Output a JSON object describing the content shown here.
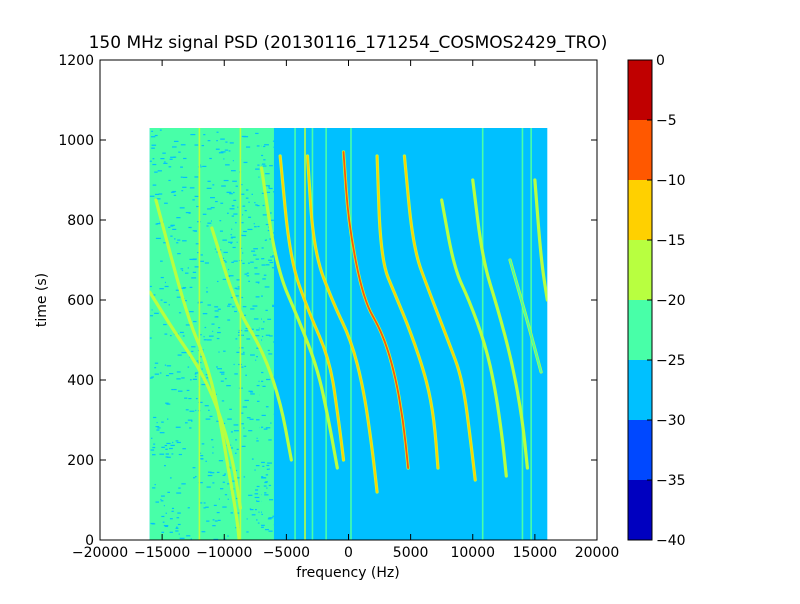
{
  "chart_data": {
    "type": "heatmap",
    "title": "150 MHz signal PSD (20130116_171254_COSMOS2429_TRO)",
    "xlabel": "frequency (Hz)",
    "ylabel": "time (s)",
    "xlim": [
      -20000,
      20000
    ],
    "ylim": [
      0,
      1200
    ],
    "xticks": [
      -20000,
      -15000,
      -10000,
      -5000,
      0,
      5000,
      10000,
      15000,
      20000
    ],
    "xtick_labels": [
      "−20000",
      "−15000",
      "−10000",
      "−5000",
      "0",
      "5000",
      "10000",
      "15000",
      "20000"
    ],
    "yticks": [
      0,
      200,
      400,
      600,
      800,
      1000,
      1200
    ],
    "ytick_labels": [
      "0",
      "200",
      "400",
      "600",
      "800",
      "1000",
      "1200"
    ],
    "data_extent": {
      "x": [
        -16000,
        16000
      ],
      "y": [
        0,
        1030
      ]
    },
    "background_level": -27.5,
    "noise_band": {
      "x": [
        -16000,
        -6000
      ],
      "level": -22.5
    },
    "colorbar": {
      "levels": [
        -40,
        -35,
        -30,
        -25,
        -20,
        -15,
        -10,
        -5,
        0
      ],
      "tick_labels": [
        "−40",
        "−35",
        "−30",
        "−25",
        "−20",
        "−15",
        "−10",
        "−5",
        "0"
      ],
      "colors": [
        "#0000c0",
        "#0048ff",
        "#00c0ff",
        "#48ffa8",
        "#b8ff40",
        "#ffd000",
        "#ff5800",
        "#c00000"
      ]
    },
    "vertical_lines": [
      {
        "x": -12000,
        "level": -17.5
      },
      {
        "x": -8700,
        "level": -17.5
      },
      {
        "x": -7100,
        "level": -22.5
      },
      {
        "x": -4300,
        "level": -22.5
      },
      {
        "x": -3500,
        "level": -17.5
      },
      {
        "x": -2900,
        "level": -22.5
      },
      {
        "x": -1800,
        "level": -22.5
      },
      {
        "x": 200,
        "level": -22.5
      },
      {
        "x": 10800,
        "level": -22.5
      },
      {
        "x": 14000,
        "level": -22.5
      },
      {
        "x": 14700,
        "level": -22.5
      }
    ],
    "tracks": [
      {
        "points": [
          [
            -15500,
            850
          ],
          [
            -13000,
            560
          ],
          [
            -11500,
            450
          ],
          [
            -10500,
            330
          ],
          [
            -9800,
            200
          ],
          [
            -9000,
            60
          ],
          [
            -8800,
            0
          ]
        ],
        "level": -17.5
      },
      {
        "points": [
          [
            -16000,
            620
          ],
          [
            -14000,
            520
          ],
          [
            -12000,
            430
          ],
          [
            -10500,
            330
          ],
          [
            -9300,
            200
          ],
          [
            -8700,
            80
          ]
        ],
        "level": -17.5
      },
      {
        "points": [
          [
            -11000,
            780
          ],
          [
            -9000,
            580
          ],
          [
            -7000,
            480
          ],
          [
            -5500,
            350
          ],
          [
            -4600,
            200
          ]
        ],
        "level": -17.5
      },
      {
        "points": [
          [
            -7000,
            930
          ],
          [
            -5800,
            680
          ],
          [
            -4000,
            550
          ],
          [
            -2500,
            430
          ],
          [
            -1600,
            300
          ],
          [
            -900,
            180
          ]
        ],
        "level": -17.5
      },
      {
        "points": [
          [
            -5500,
            960
          ],
          [
            -4700,
            700
          ],
          [
            -3200,
            570
          ],
          [
            -1500,
            450
          ],
          [
            -800,
            300
          ],
          [
            -400,
            200
          ]
        ],
        "level": -12.5
      },
      {
        "points": [
          [
            -3300,
            960
          ],
          [
            -2800,
            720
          ],
          [
            -1200,
            590
          ],
          [
            200,
            500
          ],
          [
            1200,
            380
          ],
          [
            1900,
            230
          ],
          [
            2300,
            120
          ]
        ],
        "level": -12.5
      },
      {
        "points": [
          [
            -400,
            970
          ],
          [
            0,
            790
          ],
          [
            1200,
            600
          ],
          [
            2700,
            520
          ],
          [
            3700,
            420
          ],
          [
            4400,
            300
          ],
          [
            4800,
            180
          ]
        ],
        "level": -7.5
      },
      {
        "points": [
          [
            2300,
            960
          ],
          [
            2600,
            700
          ],
          [
            3800,
            610
          ],
          [
            5000,
            520
          ],
          [
            6300,
            400
          ],
          [
            6900,
            300
          ],
          [
            7200,
            180
          ]
        ],
        "level": -12.5
      },
      {
        "points": [
          [
            4500,
            960
          ],
          [
            5200,
            730
          ],
          [
            6500,
            620
          ],
          [
            8000,
            500
          ],
          [
            9200,
            400
          ],
          [
            9900,
            230
          ],
          [
            10200,
            150
          ]
        ],
        "level": -12.5
      },
      {
        "points": [
          [
            7500,
            850
          ],
          [
            8500,
            680
          ],
          [
            9700,
            600
          ],
          [
            11000,
            490
          ],
          [
            11800,
            380
          ],
          [
            12400,
            250
          ],
          [
            12700,
            160
          ]
        ],
        "level": -17.5
      },
      {
        "points": [
          [
            10000,
            900
          ],
          [
            10800,
            700
          ],
          [
            12000,
            580
          ],
          [
            13200,
            440
          ],
          [
            14000,
            300
          ],
          [
            14400,
            180
          ]
        ],
        "level": -17.5
      },
      {
        "points": [
          [
            13000,
            700
          ],
          [
            14200,
            570
          ],
          [
            15500,
            420
          ]
        ],
        "level": -22.5
      },
      {
        "points": [
          [
            15000,
            900
          ],
          [
            15500,
            700
          ],
          [
            16000,
            600
          ]
        ],
        "level": -17.5
      }
    ]
  }
}
